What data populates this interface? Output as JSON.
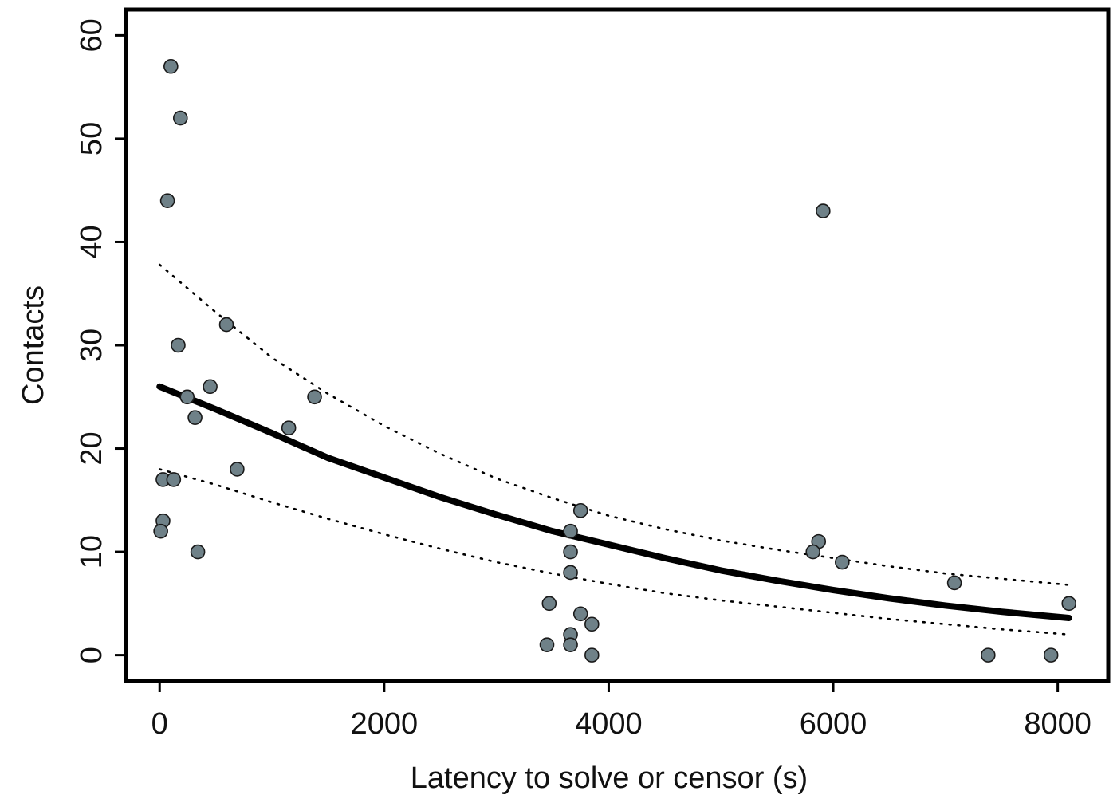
{
  "chart_data": {
    "type": "scatter",
    "xlabel": "Latency to solve or censor (s)",
    "ylabel": "Contacts",
    "xlim": [
      -300,
      8450
    ],
    "ylim": [
      -2.5,
      62.5
    ],
    "x_ticks": [
      0,
      2000,
      4000,
      6000,
      8000
    ],
    "x_tick_labels": [
      "0",
      "2000",
      "4000",
      "6000",
      "8000"
    ],
    "y_ticks": [
      0,
      10,
      20,
      30,
      40,
      50,
      60
    ],
    "y_tick_labels": [
      "0",
      "10",
      "20",
      "30",
      "40",
      "50",
      "60"
    ],
    "grid": false,
    "points": {
      "x": [
        100,
        185,
        70,
        595,
        165,
        245,
        450,
        1380,
        315,
        1150,
        690,
        30,
        125,
        30,
        10,
        340,
        3750,
        3660,
        3660,
        3660,
        3470,
        3750,
        3850,
        3660,
        3450,
        3660,
        3850,
        5910,
        5870,
        5820,
        6080,
        7080,
        8100,
        7380,
        7940
      ],
      "y": [
        57,
        52,
        44,
        32,
        30,
        25,
        26,
        25,
        23,
        22,
        18,
        17,
        17,
        13,
        12,
        10,
        14,
        12,
        10,
        8,
        5,
        4,
        3,
        2,
        1,
        1,
        0,
        43,
        11,
        10,
        9,
        7,
        5,
        0,
        0
      ],
      "color": "#6f8188"
    },
    "fit": {
      "x": [
        0,
        500,
        1000,
        1500,
        2000,
        2500,
        3000,
        3500,
        4000,
        4500,
        5000,
        5500,
        6000,
        6500,
        7000,
        7500,
        8100
      ],
      "y": [
        26,
        23.8,
        21.5,
        19.1,
        17.2,
        15.3,
        13.6,
        12.0,
        10.7,
        9.4,
        8.2,
        7.2,
        6.3,
        5.5,
        4.8,
        4.2,
        3.6
      ],
      "color": "#000000"
    },
    "ci_upper": {
      "x": [
        0,
        500,
        1000,
        1500,
        2000,
        2500,
        3000,
        3500,
        4000,
        4500,
        5000,
        5500,
        6000,
        6500,
        7000,
        7500,
        8100
      ],
      "y": [
        37.8,
        33.2,
        28.8,
        25.3,
        22.2,
        19.5,
        17.1,
        15.2,
        13.5,
        12.2,
        11.1,
        10.2,
        9.4,
        8.6,
        7.9,
        7.4,
        6.8
      ]
    },
    "ci_lower": {
      "x": [
        0,
        500,
        1000,
        1500,
        2000,
        2500,
        3000,
        3500,
        4000,
        4500,
        5000,
        5500,
        6000,
        6500,
        7000,
        7500,
        8100
      ],
      "y": [
        18,
        16.5,
        14.8,
        13.2,
        11.7,
        10.3,
        9.0,
        7.9,
        6.9,
        6.0,
        5.3,
        4.7,
        4.1,
        3.5,
        3.0,
        2.5,
        2.0
      ]
    }
  }
}
